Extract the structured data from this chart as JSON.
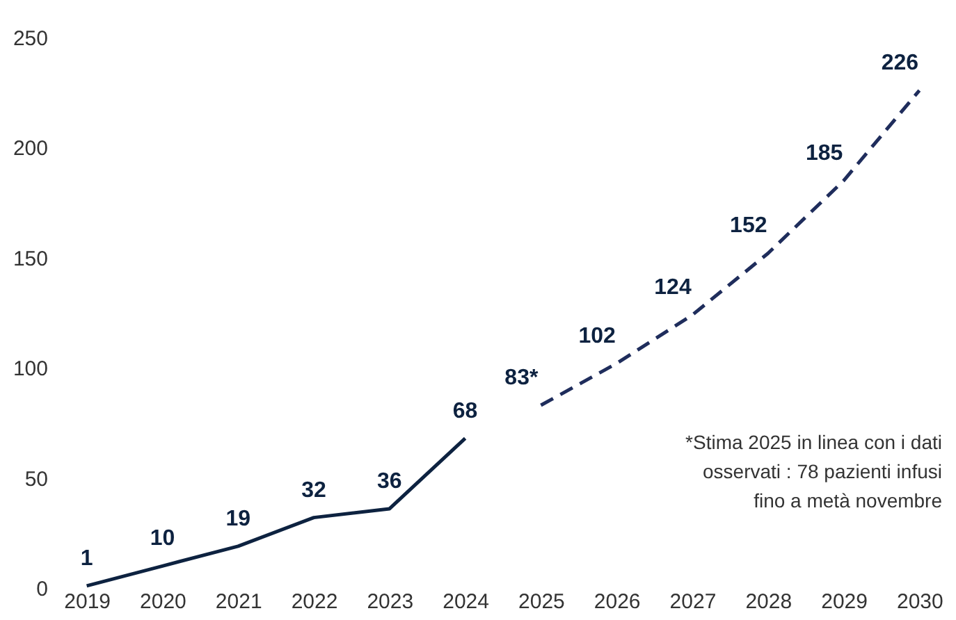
{
  "chart_data": {
    "type": "line",
    "categories": [
      "2019",
      "2020",
      "2021",
      "2022",
      "2023",
      "2024",
      "2025",
      "2026",
      "2027",
      "2028",
      "2029",
      "2030"
    ],
    "series": [
      {
        "color": "#0d2240",
        "line_style": "solid",
        "values": [
          1,
          10,
          19,
          32,
          36,
          68,
          null,
          null,
          null,
          null,
          null,
          null
        ],
        "value_labels": [
          "1",
          "10",
          "19",
          "32",
          "36",
          "68",
          null,
          null,
          null,
          null,
          null,
          null
        ]
      },
      {
        "color": "#1f2d5c",
        "line_style": "dashed",
        "values": [
          null,
          null,
          null,
          null,
          null,
          null,
          83,
          102,
          124,
          152,
          185,
          226
        ],
        "value_labels": [
          null,
          null,
          null,
          null,
          null,
          null,
          "83*",
          "102",
          "124",
          "152",
          "185",
          "226"
        ]
      }
    ],
    "ylim": [
      0,
      250
    ],
    "yticks": [
      0,
      50,
      100,
      150,
      200,
      250
    ],
    "grid": false,
    "marker": "none",
    "annotations": [
      "*Stima 2025 in linea con i dati",
      "osservati : 78 pazienti infusi",
      "fino a metà novembre"
    ]
  }
}
